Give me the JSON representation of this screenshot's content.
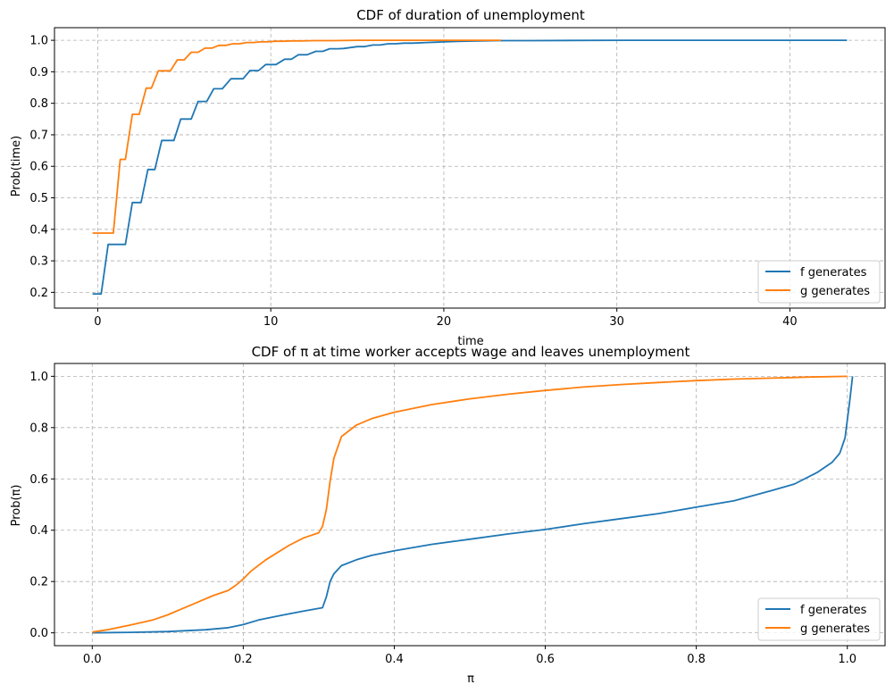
{
  "colors": {
    "f": "#1f77b4",
    "g": "#ff7f0e",
    "grid": "#b0b0b0",
    "legend_border": "#cccccc"
  },
  "chart_data": [
    {
      "type": "line",
      "title": "CDF of duration of unemployment",
      "xlabel": "time",
      "ylabel": "Prob(time)",
      "xlim": [
        -2.5,
        45.5
      ],
      "ylim": [
        0.15,
        1.04
      ],
      "xticks": [
        0,
        10,
        20,
        30,
        40
      ],
      "yticks": [
        0.2,
        0.3,
        0.4,
        0.5,
        0.6,
        0.7,
        0.8,
        0.9,
        1.0
      ],
      "xtick_labels": [
        "0",
        "10",
        "20",
        "30",
        "40"
      ],
      "ytick_labels": [
        "0.2",
        "0.3",
        "0.4",
        "0.5",
        "0.6",
        "0.7",
        "0.8",
        "0.9",
        "1.0"
      ],
      "grid": true,
      "legend_position": "lower-right",
      "series": [
        {
          "name": "f generates",
          "color_key": "f",
          "x": [
            -0.3,
            0.2,
            0.6,
            1.6,
            2.0,
            2.5,
            2.9,
            3.3,
            3.7,
            4.4,
            4.8,
            5.4,
            5.8,
            6.3,
            6.7,
            7.2,
            7.7,
            8.4,
            8.8,
            9.3,
            9.7,
            10.3,
            10.8,
            11.2,
            11.6,
            12.1,
            12.6,
            13.0,
            13.4,
            13.9,
            14.2,
            15.0,
            15.4,
            15.9,
            16.3,
            16.8,
            17.2,
            17.7,
            18.2,
            19.0,
            19.6,
            20.0,
            21.0,
            22.0,
            23.0,
            25.0,
            30.0,
            35.0,
            43.3
          ],
          "y": [
            0.195,
            0.195,
            0.352,
            0.352,
            0.485,
            0.485,
            0.59,
            0.59,
            0.682,
            0.682,
            0.75,
            0.75,
            0.806,
            0.806,
            0.846,
            0.846,
            0.878,
            0.878,
            0.904,
            0.904,
            0.923,
            0.923,
            0.94,
            0.94,
            0.954,
            0.954,
            0.965,
            0.965,
            0.973,
            0.973,
            0.974,
            0.98,
            0.98,
            0.985,
            0.985,
            0.989,
            0.989,
            0.991,
            0.991,
            0.993,
            0.994,
            0.995,
            0.997,
            0.998,
            0.999,
            0.999,
            1.0,
            1.0,
            1.0
          ]
        },
        {
          "name": "g generates",
          "color_key": "g",
          "x": [
            -0.3,
            0.9,
            1.3,
            1.6,
            2.0,
            2.4,
            2.8,
            3.1,
            3.5,
            3.8,
            4.2,
            4.6,
            5.0,
            5.4,
            5.8,
            6.2,
            6.6,
            7.0,
            7.4,
            7.8,
            8.2,
            8.6,
            9.0,
            9.4,
            9.8,
            10.3,
            10.7,
            11.2,
            11.7,
            12.5,
            13.5,
            15.0,
            17.0,
            20.0,
            23.3
          ],
          "y": [
            0.388,
            0.388,
            0.622,
            0.622,
            0.765,
            0.765,
            0.848,
            0.848,
            0.903,
            0.903,
            0.903,
            0.938,
            0.938,
            0.962,
            0.962,
            0.975,
            0.975,
            0.984,
            0.984,
            0.989,
            0.989,
            0.993,
            0.993,
            0.995,
            0.995,
            0.997,
            0.997,
            0.998,
            0.998,
            0.999,
            0.999,
            1.0,
            1.0,
            1.0,
            1.0
          ]
        }
      ]
    },
    {
      "type": "line",
      "title": "CDF of π at time worker accepts wage and leaves unemployment",
      "xlabel": "π",
      "ylabel": "Prob(π)",
      "xlim": [
        -0.05,
        1.05
      ],
      "ylim": [
        -0.05,
        1.05
      ],
      "xticks": [
        0.0,
        0.2,
        0.4,
        0.6,
        0.8,
        1.0
      ],
      "yticks": [
        0.0,
        0.2,
        0.4,
        0.6,
        0.8,
        1.0
      ],
      "xtick_labels": [
        "0.0",
        "0.2",
        "0.4",
        "0.6",
        "0.8",
        "1.0"
      ],
      "ytick_labels": [
        "0.0",
        "0.2",
        "0.4",
        "0.6",
        "0.8",
        "1.0"
      ],
      "grid": true,
      "legend_position": "lower-right",
      "series": [
        {
          "name": "f generates",
          "color_key": "f",
          "x": [
            0.0,
            0.05,
            0.1,
            0.15,
            0.18,
            0.2,
            0.22,
            0.25,
            0.28,
            0.3,
            0.305,
            0.31,
            0.315,
            0.32,
            0.33,
            0.35,
            0.37,
            0.4,
            0.45,
            0.5,
            0.55,
            0.6,
            0.65,
            0.7,
            0.75,
            0.8,
            0.85,
            0.9,
            0.93,
            0.96,
            0.98,
            0.99,
            0.997,
            1.003,
            1.007
          ],
          "y": [
            0.0,
            0.002,
            0.005,
            0.012,
            0.02,
            0.032,
            0.05,
            0.068,
            0.085,
            0.095,
            0.098,
            0.14,
            0.2,
            0.23,
            0.262,
            0.285,
            0.302,
            0.32,
            0.345,
            0.365,
            0.385,
            0.403,
            0.425,
            0.445,
            0.465,
            0.49,
            0.515,
            0.555,
            0.58,
            0.625,
            0.665,
            0.7,
            0.76,
            0.9,
            1.0
          ]
        },
        {
          "name": "g generates",
          "color_key": "g",
          "x": [
            0.0,
            0.02,
            0.05,
            0.08,
            0.1,
            0.12,
            0.14,
            0.16,
            0.18,
            0.19,
            0.2,
            0.21,
            0.23,
            0.26,
            0.28,
            0.3,
            0.305,
            0.31,
            0.315,
            0.32,
            0.33,
            0.35,
            0.37,
            0.4,
            0.45,
            0.5,
            0.55,
            0.6,
            0.65,
            0.7,
            0.75,
            0.8,
            0.85,
            0.9,
            0.95,
            1.0
          ],
          "y": [
            0.003,
            0.012,
            0.03,
            0.05,
            0.07,
            0.095,
            0.12,
            0.145,
            0.165,
            0.185,
            0.21,
            0.24,
            0.285,
            0.34,
            0.37,
            0.39,
            0.415,
            0.48,
            0.59,
            0.68,
            0.765,
            0.81,
            0.835,
            0.86,
            0.89,
            0.912,
            0.93,
            0.945,
            0.958,
            0.968,
            0.976,
            0.983,
            0.989,
            0.993,
            0.997,
            1.0
          ]
        }
      ]
    }
  ]
}
